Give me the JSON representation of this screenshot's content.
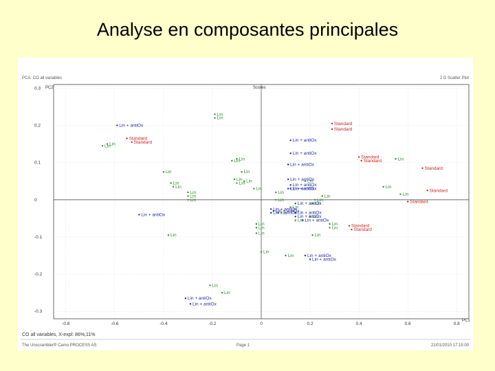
{
  "slide": {
    "title": "Analyse en composantes principales"
  },
  "header": {
    "left": "PCA: CO all variables",
    "right": "2 D Scatter Plot",
    "plot_title": "Scores",
    "y_axis_name": "PC2",
    "x_axis_name": "PC1"
  },
  "footer": {
    "caption": "CO all variables, X-expl: 86%,11%",
    "software": "The Unscrambler® Camo PROCESS AS",
    "page": "Page 1",
    "date": "21/01/2010 17:15:00"
  },
  "colors": {
    "Lin": "#2e8b2e",
    "Lin + antiOx": "#1f2aa0",
    "Standard": "#cc2222",
    "background": "#ffffcc"
  },
  "chart_data": {
    "type": "scatter",
    "title": "Scores",
    "xlabel": "PC1",
    "ylabel": "PC2",
    "xlim": [
      -0.85,
      0.85
    ],
    "ylim": [
      -0.32,
      0.31
    ],
    "x_ticks": [
      -0.8,
      -0.6,
      -0.4,
      -0.2,
      0,
      0.2,
      0.4,
      0.6,
      0.8
    ],
    "y_ticks": [
      0.3,
      0.2,
      0.1,
      0,
      -0.1,
      -0.2,
      -0.3
    ],
    "grid": true,
    "series": [
      {
        "name": "Lin",
        "points": [
          [
            -0.19,
            0.23
          ],
          [
            -0.19,
            0.22
          ],
          [
            -0.63,
            0.15
          ],
          [
            -0.65,
            0.145
          ],
          [
            -0.1,
            0.11
          ],
          [
            -0.12,
            0.105
          ],
          [
            -0.4,
            0.075
          ],
          [
            -0.08,
            0.075
          ],
          [
            -0.37,
            0.045
          ],
          [
            -0.11,
            0.055
          ],
          [
            -0.1,
            0.045
          ],
          [
            -0.36,
            0.035
          ],
          [
            -0.07,
            0.05
          ],
          [
            -0.3,
            0.02
          ],
          [
            -0.3,
            0.01
          ],
          [
            -0.3,
            0.0
          ],
          [
            -0.03,
            0.03
          ],
          [
            -0.38,
            -0.095
          ],
          [
            -0.02,
            -0.09
          ],
          [
            0.06,
            0.02
          ],
          [
            0.06,
            0.0
          ],
          [
            0.21,
            -0.01
          ],
          [
            0.22,
            0.0
          ],
          [
            0.18,
            0.05
          ],
          [
            0.25,
            0.01
          ],
          [
            0.5,
            0.035
          ],
          [
            0.55,
            0.11
          ],
          [
            0.57,
            0.015
          ],
          [
            0.28,
            -0.065
          ],
          [
            0.28,
            -0.075
          ],
          [
            0.21,
            -0.095
          ],
          [
            0.0,
            -0.14
          ],
          [
            0.1,
            -0.15
          ],
          [
            -0.21,
            -0.23
          ],
          [
            -0.16,
            -0.25
          ],
          [
            0.12,
            -0.02
          ],
          [
            -0.02,
            -0.065
          ],
          [
            -0.02,
            -0.075
          ],
          [
            0.14,
            -0.055
          ],
          [
            0.2,
            -0.045
          ],
          [
            0.07,
            -0.035
          ]
        ]
      },
      {
        "name": "Lin + antiOx",
        "points": [
          [
            -0.59,
            0.2
          ],
          [
            0.12,
            0.16
          ],
          [
            0.12,
            0.125
          ],
          [
            0.11,
            0.095
          ],
          [
            0.11,
            0.055
          ],
          [
            0.11,
            0.03
          ],
          [
            0.12,
            0.04
          ],
          [
            0.12,
            0.03
          ],
          [
            0.14,
            -0.01
          ],
          [
            -0.5,
            -0.04
          ],
          [
            0.04,
            -0.025
          ],
          [
            0.05,
            -0.03
          ],
          [
            0.04,
            -0.035
          ],
          [
            0.14,
            -0.035
          ],
          [
            0.14,
            -0.045
          ],
          [
            0.17,
            -0.055
          ],
          [
            0.18,
            -0.15
          ],
          [
            0.2,
            -0.16
          ],
          [
            -0.31,
            -0.265
          ],
          [
            -0.29,
            -0.28
          ]
        ]
      },
      {
        "name": "Standard",
        "points": [
          [
            -0.55,
            0.165
          ],
          [
            -0.53,
            0.155
          ],
          [
            0.29,
            0.205
          ],
          [
            0.29,
            0.19
          ],
          [
            0.4,
            0.115
          ],
          [
            0.41,
            0.105
          ],
          [
            0.66,
            0.085
          ],
          [
            0.68,
            0.025
          ],
          [
            0.6,
            -0.005
          ],
          [
            0.36,
            -0.07
          ],
          [
            0.37,
            -0.08
          ]
        ]
      }
    ]
  }
}
